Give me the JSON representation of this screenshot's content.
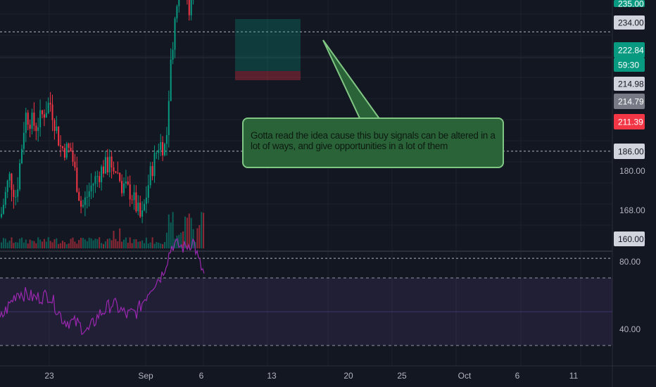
{
  "chart_data": [
    {
      "type": "candlestick",
      "title": "",
      "y_ticks": [
        "234.00",
        "214.98",
        "186.00",
        "180.00",
        "168.00",
        "160.00"
      ],
      "price_tags": [
        {
          "label": "235.00",
          "color": "#089981",
          "kind": "top"
        },
        {
          "label": "234.00",
          "color": "#d1d4dc",
          "kind": "level"
        },
        {
          "label": "222.84",
          "color": "#089981",
          "kind": "price"
        },
        {
          "label": "59:30",
          "color": "#089981",
          "kind": "countdown"
        },
        {
          "label": "214.98",
          "color": "#d1d4dc",
          "kind": "level"
        },
        {
          "label": "214.79",
          "color": "#787b86",
          "kind": "level"
        },
        {
          "label": "211.39",
          "color": "#f23645",
          "kind": "level"
        },
        {
          "label": "186.00",
          "color": "#d1d4dc",
          "kind": "level"
        },
        {
          "label": "160.00",
          "color": "#d1d4dc",
          "kind": "level"
        }
      ],
      "horizontal_levels": [
        234.0,
        214.98,
        186.0,
        160.0
      ],
      "position_box": {
        "type": "long",
        "profit_color": "#089981",
        "loss_color": "#f23645"
      },
      "annotation": "Gotta read the idea cause this buy signals can be altered in a lot of ways, and give opportunities in a lot of them",
      "x_ticks": [
        "23",
        "Sep",
        "6",
        "13",
        "20",
        "25",
        "Oct",
        "6",
        "11"
      ],
      "colors": {
        "up": "#089981",
        "down": "#f23645",
        "background": "#131722"
      }
    },
    {
      "type": "line",
      "title": "",
      "y_ticks": [
        "80.00",
        "40.00"
      ],
      "band_color": "#7e57c2",
      "line_color": "#9c27b0",
      "levels": [
        70,
        30
      ]
    }
  ],
  "annotation_text": "Gotta read the idea cause this buy signals can be altered in a lot of ways, and give opportunities in a lot of them"
}
